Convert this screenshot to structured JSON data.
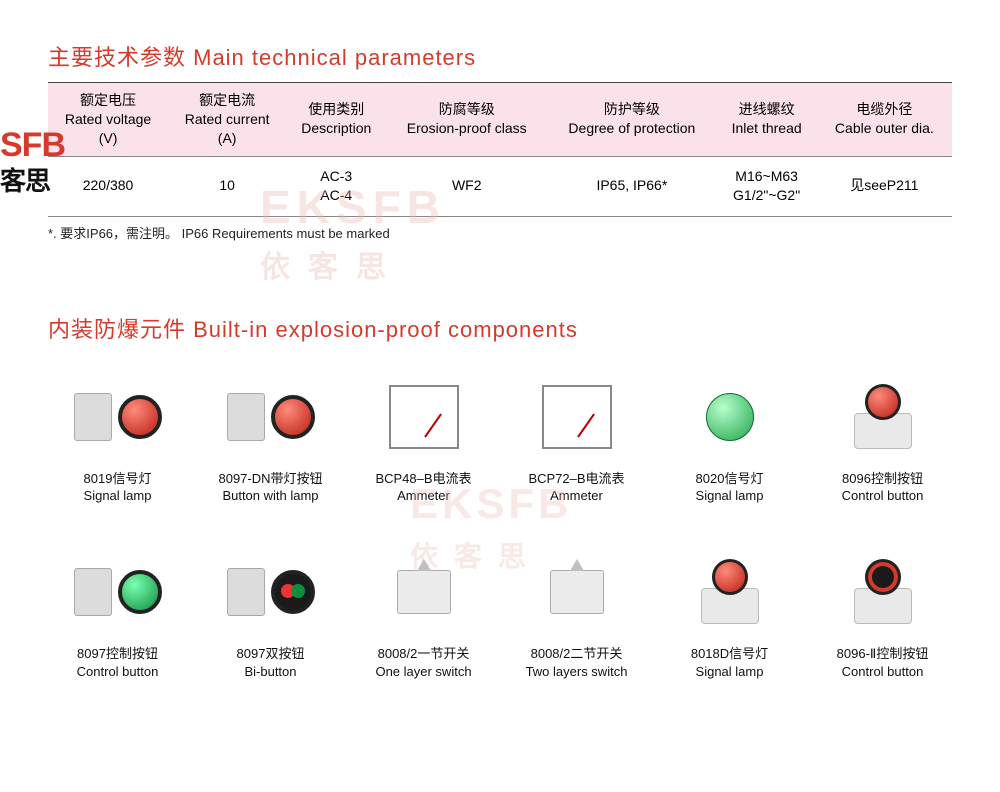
{
  "colors": {
    "accent": "#d63a2b",
    "header_bg": "#fbe2ea",
    "border": "#888888",
    "text": "#111111",
    "wm": "#e9b7b0"
  },
  "watermark": {
    "logo_main": "SFB",
    "logo_sub": "客思",
    "mid1": "EKSFB",
    "mid1_sub": "依客思",
    "mid2": "EKSFB",
    "mid2_sub": "依客思"
  },
  "section1": {
    "title": "主要技术参数  Main technical parameters",
    "columns": [
      {
        "zh": "额定电压",
        "en": "Rated voltage",
        "unit": "(V)"
      },
      {
        "zh": "额定电流",
        "en": "Rated current",
        "unit": "(A)"
      },
      {
        "zh": "使用类别",
        "en": "Description",
        "unit": ""
      },
      {
        "zh": "防腐等级",
        "en": "Erosion-proof class",
        "unit": ""
      },
      {
        "zh": "防护等级",
        "en": "Degree of protection",
        "unit": ""
      },
      {
        "zh": "进线螺纹",
        "en": "Inlet  thread",
        "unit": ""
      },
      {
        "zh": "电缆外径",
        "en": "Cable outer dia.",
        "unit": ""
      }
    ],
    "row": [
      "220/380",
      "10",
      "AC-3\nAC-4",
      "WF2",
      "IP65, IP66*",
      "M16~M63\nG1/2\"~G2\"",
      "见seeP211"
    ],
    "footnote": "*. 要求IP66，需注明。   IP66 Requirements must be marked"
  },
  "section2": {
    "title": "内装防爆元件  Built-in explosion-proof components",
    "items": [
      {
        "zh": "8019信号灯",
        "en": "Signal lamp",
        "icon": "block+cap-red"
      },
      {
        "zh": "8097-DN带灯按钮",
        "en": "Button with lamp",
        "icon": "block+cap-red"
      },
      {
        "zh": "BCP48–B电流表",
        "en": "Ammeter",
        "icon": "meter"
      },
      {
        "zh": "BCP72–B电流表",
        "en": "Ammeter",
        "icon": "meter"
      },
      {
        "zh": "8020信号灯",
        "en": "Signal lamp",
        "icon": "led-green"
      },
      {
        "zh": "8096控制按钮",
        "en": "Control button",
        "icon": "lamp-red"
      },
      {
        "zh": "8097控制按钮",
        "en": "Control button",
        "icon": "block+cap-green"
      },
      {
        "zh": "8097双按钮",
        "en": "Bi-button",
        "icon": "block+bi"
      },
      {
        "zh": "8008/2一节开关",
        "en": "One layer switch",
        "icon": "module"
      },
      {
        "zh": "8008/2二节开关",
        "en": "Two layers  switch",
        "icon": "module"
      },
      {
        "zh": "8018D信号灯",
        "en": "Signal lamp",
        "icon": "lamp-red"
      },
      {
        "zh": "8096-Ⅱ控制按钮",
        "en": "Control button",
        "icon": "lamp-black"
      }
    ]
  }
}
